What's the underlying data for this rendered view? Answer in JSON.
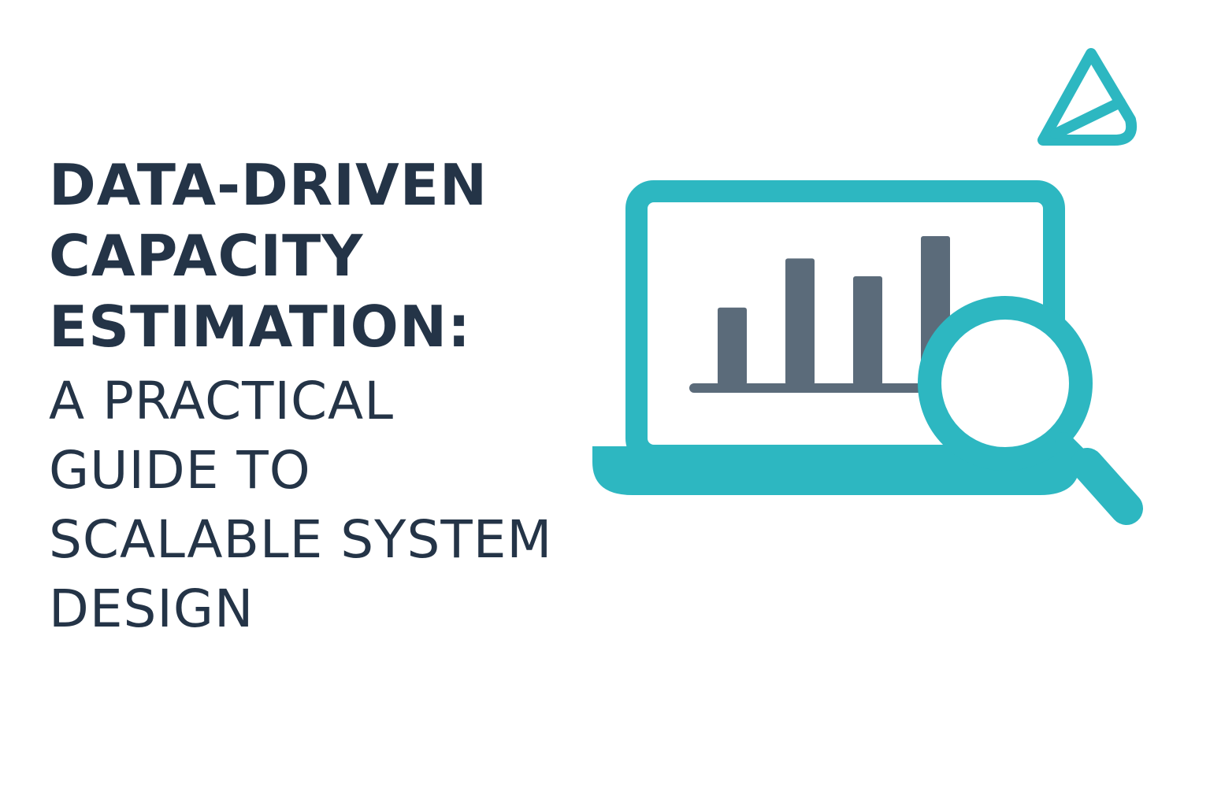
{
  "title": {
    "lines": [
      "DATA-DRIVEN",
      "CAPACITY",
      "ESTIMATION:"
    ]
  },
  "subtitle": {
    "lines": [
      "A PRACTICAL",
      "GUIDE TO",
      "SCALABLE SYSTEM",
      "DESIGN"
    ]
  },
  "illustration": {
    "icons": [
      "laptop-icon",
      "bar-chart-icon",
      "magnifying-glass-icon",
      "pencil-tip-icon"
    ],
    "chart_bar_levels": [
      0.52,
      0.85,
      0.73,
      1.0
    ]
  },
  "colors": {
    "text": "#243447",
    "accent": "#2DB7C1",
    "bars": "#5B6B7A"
  }
}
